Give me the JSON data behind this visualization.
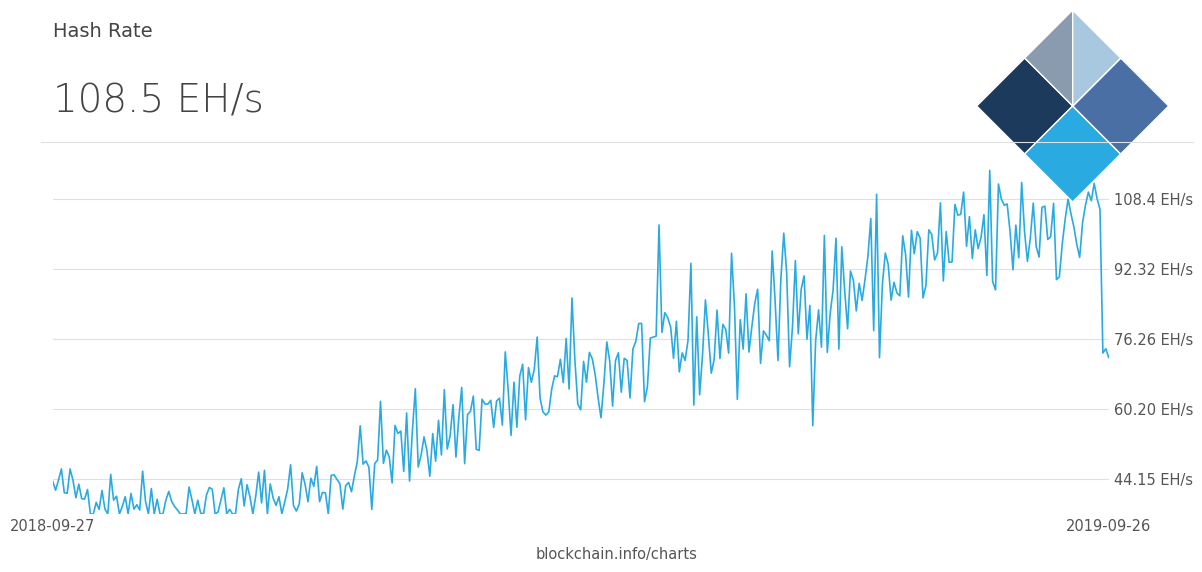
{
  "title_small": "Hash Rate",
  "title_large": "108.5 EH/s",
  "x_start": "2018-09-27",
  "x_end": "2019-09-26",
  "footer_text": "blockchain.info/charts",
  "y_ticks": [
    44.15,
    60.2,
    76.26,
    92.32,
    108.4
  ],
  "y_tick_labels": [
    "44.15 EH/s",
    "60.20 EH/s",
    "76.26 EH/s",
    "92.32 EH/s",
    "108.4 EH/s"
  ],
  "y_min": 36.0,
  "y_max": 116.0,
  "line_color": "#29ABE2",
  "bg_color": "#FFFFFF",
  "grid_color": "#E0E0E0",
  "text_color": "#555555",
  "title_color": "#444444",
  "logo_colors": {
    "dark_navy": "#1B3A5C",
    "steel_blue": "#4A6FA5",
    "cyan": "#29ABE2",
    "light_blue": "#A8C8E0",
    "gray_blue": "#8A9BB0"
  }
}
